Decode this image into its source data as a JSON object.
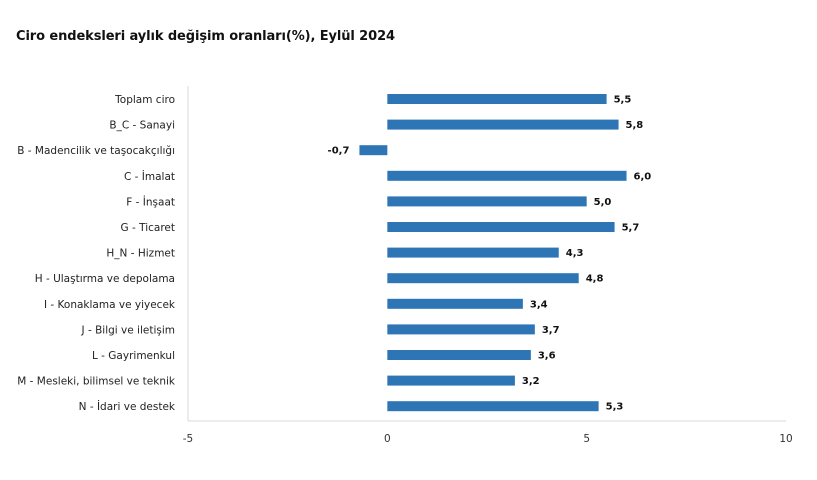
{
  "chart_data": {
    "type": "bar",
    "orientation": "horizontal",
    "title": "Ciro endeksleri aylık değişim oranları(%), Eylül 2024",
    "xlabel": "",
    "ylabel": "",
    "xlim": [
      -5,
      10
    ],
    "x_ticks": [
      "-5",
      "0",
      "5",
      "10"
    ],
    "grid": false,
    "legend": "none",
    "bar_color": "#2E75B6",
    "categories": [
      "Toplam ciro",
      "B_C - Sanayi",
      "B - Madencilik ve taşocakçılığı",
      "C - İmalat",
      "F - İnşaat",
      "G - Ticaret",
      "H_N - Hizmet",
      "H - Ulaştırma ve depolama",
      "I - Konaklama ve yiyecek",
      "J - Bilgi ve iletişim",
      "L - Gayrimenkul",
      "M - Mesleki, bilimsel ve teknik",
      "N - İdari ve destek"
    ],
    "values": [
      5.5,
      5.8,
      -0.7,
      6.0,
      5.0,
      5.7,
      4.3,
      4.8,
      3.4,
      3.7,
      3.6,
      3.2,
      5.3
    ],
    "value_labels": [
      "5,5",
      "5,8",
      "-0,7",
      "6,0",
      "5,0",
      "5,7",
      "4,3",
      "4,8",
      "3,4",
      "3,7",
      "3,6",
      "3,2",
      "5,3"
    ]
  }
}
